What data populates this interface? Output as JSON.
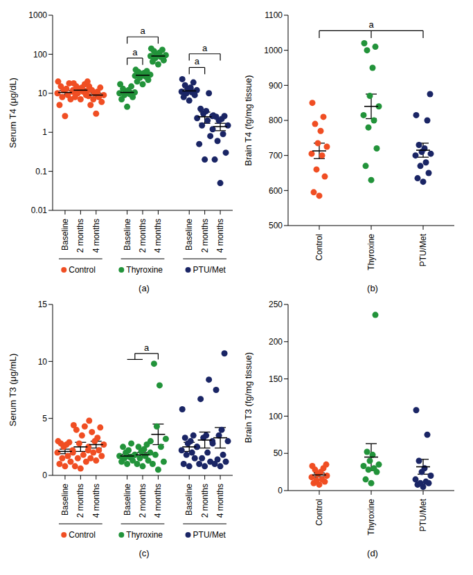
{
  "chart_data": [
    {
      "label": "(a)",
      "type": "scatter",
      "y_label": "Serum T4 (μg/dL)",
      "log": "y",
      "ylim": [
        0.01,
        1000
      ],
      "yticks": [
        0.01,
        0.1,
        1,
        10,
        100,
        1000
      ],
      "categories": [
        "Baseline",
        "2 months",
        "4 months"
      ],
      "series": [
        {
          "name": "Control",
          "color": "#f04e23",
          "points": [
            [
              2.6,
              5,
              7,
              8,
              9,
              10,
              11,
              12,
              13,
              15,
              18,
              20
            ],
            [
              7,
              8,
              9,
              10,
              11,
              12,
              12,
              13,
              14,
              15,
              17,
              18,
              20
            ],
            [
              3,
              5,
              6,
              7,
              8,
              8.5,
              9,
              10,
              11,
              12,
              14,
              15
            ]
          ],
          "mean": [
            10.5,
            12,
            9
          ],
          "error": [
            1.4,
            1,
            1
          ]
        },
        {
          "name": "Thyroxine",
          "color": "#22933a",
          "points": [
            [
              4.5,
              7,
              8,
              9,
              9.5,
              10,
              10.5,
              11,
              12,
              13,
              15,
              17
            ],
            [
              17,
              20,
              22,
              25,
              27,
              28,
              30,
              31,
              33,
              35,
              37,
              40
            ],
            [
              55,
              65,
              70,
              80,
              85,
              90,
              95,
              100,
              110,
              120,
              130,
              140
            ]
          ],
          "mean": [
            10.5,
            29,
            90
          ],
          "error": [
            1,
            2,
            7
          ]
        },
        {
          "name": "PTU/Met",
          "color": "#1a2565",
          "points": [
            [
              6.5,
              8,
              9,
              10,
              10.5,
              11,
              12,
              13,
              14,
              16,
              19,
              23
            ],
            [
              0.2,
              0.5,
              0.8,
              1.5,
              2,
              2.3,
              2.6,
              3,
              3.5,
              4,
              10
            ],
            [
              0.05,
              0.2,
              0.3,
              0.6,
              0.9,
              1.2,
              1.5,
              2,
              2.2,
              2.5,
              2.6,
              2.7
            ]
          ],
          "mean": [
            11.5,
            2.5,
            1.4
          ],
          "error": [
            1.2,
            0.8,
            0.3
          ]
        }
      ],
      "brackets": [
        {
          "text": "a",
          "series": "Thyroxine",
          "legs": [
            [
              "Baseline"
            ],
            [
              "2 months"
            ]
          ]
        },
        {
          "text": "a",
          "series": "Thyroxine",
          "legs": [
            [
              "Baseline"
            ],
            [
              "4 months"
            ]
          ]
        },
        {
          "text": "a",
          "series": "PTU/Met",
          "legs": [
            [
              "Baseline"
            ],
            [
              "2 months"
            ]
          ]
        },
        {
          "text": "a",
          "series": "PTU/Met",
          "legs": [
            [
              "Baseline"
            ],
            [
              "4 months"
            ]
          ]
        }
      ]
    },
    {
      "label": "(b)",
      "type": "scatter",
      "y_label": "Brain T4 (fg/mg tissue)",
      "ylim": [
        500,
        1100
      ],
      "yticks": [
        500,
        600,
        700,
        800,
        900,
        1000,
        1100
      ],
      "series": [
        {
          "name": "Control",
          "color": "#f04e23",
          "points": [
            [
              585,
              595,
              640,
              660,
              700,
              705,
              725,
              735,
              770,
              790,
              810,
              850
            ]
          ],
          "mean": [
            713
          ],
          "error": [
            22
          ]
        },
        {
          "name": "Thyroxine",
          "color": "#22933a",
          "points": [
            [
              630,
              670,
              720,
              780,
              800,
              815,
              840,
              870,
              950,
              1000,
              1010,
              1020
            ]
          ],
          "mean": [
            840
          ],
          "error": [
            35
          ]
        },
        {
          "name": "PTU/Met",
          "color": "#1a2565",
          "points": [
            [
              625,
              635,
              650,
              670,
              680,
              700,
              705,
              710,
              720,
              730,
              800,
              815,
              875
            ]
          ],
          "mean": [
            715
          ],
          "error": [
            20
          ]
        }
      ],
      "brackets": [
        {
          "text": "a",
          "legs": [
            [
              "Control"
            ],
            [
              "Thyroxine"
            ],
            [
              "PTU/Met"
            ]
          ]
        }
      ]
    },
    {
      "label": "(c)",
      "type": "scatter",
      "y_label": "Serum T3 (μg/mL)",
      "ylim": [
        0,
        15
      ],
      "yticks": [
        0,
        5,
        10,
        15
      ],
      "categories": [
        "Baseline",
        "2 months",
        "4 months"
      ],
      "series": [
        {
          "name": "Control",
          "color": "#f04e23",
          "points": [
            [
              0.8,
              1.0,
              1.2,
              1.5,
              1.7,
              2.0,
              2.2,
              2.5,
              2.7,
              2.8,
              2.9,
              3.0
            ],
            [
              0.6,
              0.8,
              1.2,
              1.5,
              1.8,
              2.0,
              2.2,
              2.8,
              3.5,
              4.0,
              4.3,
              4.4
            ],
            [
              1.3,
              1.5,
              1.7,
              2.0,
              2.2,
              2.5,
              2.7,
              3.0,
              3.3,
              3.8,
              4.2,
              4.8
            ]
          ],
          "mean": [
            2.1,
            2.5,
            2.7
          ],
          "error": [
            0.2,
            0.4,
            0.3
          ]
        },
        {
          "name": "Thyroxine",
          "color": "#22933a",
          "points": [
            [
              1.0,
              1.2,
              1.3,
              1.5,
              1.6,
              1.7,
              1.8,
              2.0,
              2.2,
              2.5,
              2.8
            ],
            [
              0.8,
              1.0,
              1.3,
              1.5,
              1.7,
              1.8,
              2.0,
              2.1,
              2.3,
              2.5,
              2.7
            ],
            [
              0.5,
              1.0,
              1.2,
              1.8,
              2.5,
              3.0,
              3.2,
              4.3,
              7.9,
              9.8
            ]
          ],
          "mean": [
            1.7,
            1.8,
            3.6
          ],
          "error": [
            0.15,
            0.2,
            0.9
          ]
        },
        {
          "name": "PTU/Met",
          "color": "#1a2565",
          "points": [
            [
              0.8,
              1.0,
              1.5,
              1.8,
              2.0,
              2.2,
              2.5,
              2.8,
              3.0,
              3.3,
              3.5,
              5.8
            ],
            [
              0.8,
              1.0,
              1.2,
              1.5,
              2.0,
              2.5,
              3.0,
              3.3,
              3.5,
              6.7,
              8.4
            ],
            [
              0.8,
              1.0,
              1.2,
              1.4,
              1.8,
              2.8,
              3.0,
              3.5,
              4.0,
              7.5,
              10.7
            ]
          ],
          "mean": [
            2.5,
            3.1,
            3.3
          ],
          "error": [
            0.4,
            0.7,
            0.9
          ]
        }
      ],
      "brackets": [
        {
          "text": "a",
          "series": "Thyroxine",
          "legs": [
            [
              "Baseline",
              "2 months"
            ],
            [
              "4 months"
            ]
          ]
        }
      ]
    },
    {
      "label": "(d)",
      "type": "scatter",
      "y_label": "Brain T3 (fg/mg tissue)",
      "ylim": [
        0,
        250
      ],
      "yticks": [
        0,
        50,
        100,
        150,
        200,
        250
      ],
      "series": [
        {
          "name": "Control",
          "color": "#f04e23",
          "points": [
            [
              8,
              10,
              12,
              14,
              15,
              18,
              20,
              22,
              25,
              28,
              30,
              33,
              35
            ]
          ],
          "mean": [
            21
          ],
          "error": [
            2.5
          ]
        },
        {
          "name": "Thyroxine",
          "color": "#22933a",
          "points": [
            [
              10,
              15,
              25,
              28,
              30,
              33,
              35,
              40,
              48,
              52,
              236
            ]
          ],
          "mean": [
            45
          ],
          "error": [
            18
          ]
        },
        {
          "name": "PTU/Met",
          "color": "#1a2565",
          "points": [
            [
              5,
              8,
              10,
              10,
              12,
              15,
              20,
              25,
              30,
              40,
              75,
              108
            ]
          ],
          "mean": [
            32
          ],
          "error": [
            10
          ]
        }
      ]
    }
  ]
}
